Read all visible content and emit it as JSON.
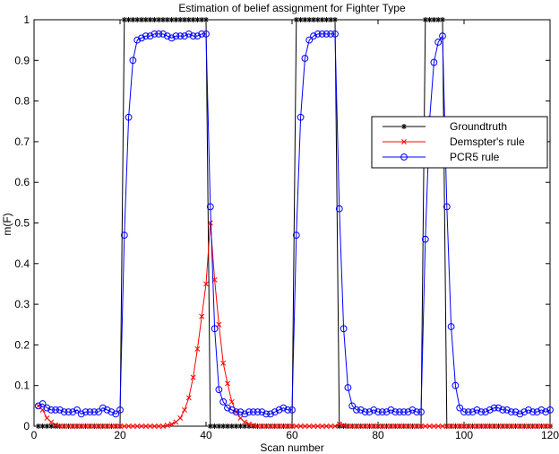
{
  "chart_data": {
    "type": "line",
    "title": "Estimation of belief assignment for Fighter Type",
    "xlabel": "Scan number",
    "ylabel": "m(F)",
    "xlim": [
      0,
      120
    ],
    "ylim": [
      0,
      1
    ],
    "xticks": [
      "0",
      "20",
      "40",
      "60",
      "80",
      "100",
      "120"
    ],
    "yticks": [
      "0",
      "0.1",
      "0.2",
      "0.3",
      "0.4",
      "0.5",
      "0.6",
      "0.7",
      "0.8",
      "0.9",
      "1"
    ],
    "grid": false,
    "legend_position": "right",
    "x": [
      1,
      2,
      3,
      4,
      5,
      6,
      7,
      8,
      9,
      10,
      11,
      12,
      13,
      14,
      15,
      16,
      17,
      18,
      19,
      20,
      21,
      22,
      23,
      24,
      25,
      26,
      27,
      28,
      29,
      30,
      31,
      32,
      33,
      34,
      35,
      36,
      37,
      38,
      39,
      40,
      41,
      42,
      43,
      44,
      45,
      46,
      47,
      48,
      49,
      50,
      51,
      52,
      53,
      54,
      55,
      56,
      57,
      58,
      59,
      60,
      61,
      62,
      63,
      64,
      65,
      66,
      67,
      68,
      69,
      70,
      71,
      72,
      73,
      74,
      75,
      76,
      77,
      78,
      79,
      80,
      81,
      82,
      83,
      84,
      85,
      86,
      87,
      88,
      89,
      90,
      91,
      92,
      93,
      94,
      95,
      96,
      97,
      98,
      99,
      100,
      101,
      102,
      103,
      104,
      105,
      106,
      107,
      108,
      109,
      110,
      111,
      112,
      113,
      114,
      115,
      116,
      117,
      118,
      119,
      120
    ],
    "series": [
      {
        "name": "Groundtruth",
        "color": "#000000",
        "marker": "star",
        "values": [
          0,
          0,
          0,
          0,
          0,
          0,
          0,
          0,
          0,
          0,
          0,
          0,
          0,
          0,
          0,
          0,
          0,
          0,
          0,
          0,
          1,
          1,
          1,
          1,
          1,
          1,
          1,
          1,
          1,
          1,
          1,
          1,
          1,
          1,
          1,
          1,
          1,
          1,
          1,
          1,
          0,
          0,
          0,
          0,
          0,
          0,
          0,
          0,
          0,
          0,
          0,
          0,
          0,
          0,
          0,
          0,
          0,
          0,
          0,
          0,
          1,
          1,
          1,
          1,
          1,
          1,
          1,
          1,
          1,
          1,
          0,
          0,
          0,
          0,
          0,
          0,
          0,
          0,
          0,
          0,
          0,
          0,
          0,
          0,
          0,
          0,
          0,
          0,
          0,
          0,
          1,
          1,
          1,
          1,
          1,
          0,
          0,
          0,
          0,
          0,
          0,
          0,
          0,
          0,
          0,
          0,
          0,
          0,
          0,
          0,
          0,
          0,
          0,
          0,
          0,
          0,
          0,
          0,
          0,
          0
        ]
      },
      {
        "name": "Demspter's rule",
        "color": "#ff0000",
        "marker": "x",
        "values": [
          0.05,
          0.04,
          0.02,
          0.01,
          0.003,
          0,
          0,
          0,
          0,
          0,
          0,
          0,
          0,
          0,
          0,
          0,
          0,
          0,
          0,
          0,
          0,
          0,
          0,
          0,
          0,
          0,
          0,
          0,
          0,
          0,
          0.002,
          0.005,
          0.01,
          0.02,
          0.04,
          0.07,
          0.12,
          0.19,
          0.27,
          0.35,
          0.5,
          0.36,
          0.25,
          0.155,
          0.105,
          0.06,
          0.035,
          0.02,
          0.01,
          0.005,
          0.002,
          0,
          0,
          0,
          0,
          0,
          0,
          0,
          0,
          0,
          0,
          0,
          0,
          0,
          0,
          0,
          0,
          0,
          0,
          0,
          0.005,
          0.002,
          0,
          0,
          0,
          0,
          0,
          0,
          0,
          0,
          0,
          0,
          0,
          0,
          0,
          0,
          0,
          0,
          0,
          0,
          0,
          0,
          0,
          0,
          0,
          0,
          0,
          0,
          0,
          0,
          0,
          0,
          0,
          0,
          0,
          0,
          0,
          0,
          0,
          0,
          0,
          0,
          0,
          0,
          0,
          0,
          0,
          0,
          0,
          0
        ]
      },
      {
        "name": "PCR5 rule",
        "color": "#0000ff",
        "marker": "circle",
        "values": [
          0.05,
          0.055,
          0.045,
          0.04,
          0.04,
          0.04,
          0.035,
          0.035,
          0.035,
          0.04,
          0.03,
          0.035,
          0.035,
          0.035,
          0.035,
          0.045,
          0.04,
          0.035,
          0.03,
          0.04,
          0.47,
          0.76,
          0.9,
          0.95,
          0.955,
          0.96,
          0.96,
          0.965,
          0.965,
          0.965,
          0.96,
          0.955,
          0.96,
          0.96,
          0.96,
          0.965,
          0.96,
          0.96,
          0.965,
          0.965,
          0.54,
          0.24,
          0.09,
          0.06,
          0.045,
          0.04,
          0.035,
          0.035,
          0.03,
          0.035,
          0.035,
          0.035,
          0.035,
          0.03,
          0.03,
          0.035,
          0.04,
          0.045,
          0.04,
          0.04,
          0.47,
          0.76,
          0.905,
          0.95,
          0.96,
          0.965,
          0.965,
          0.965,
          0.965,
          0.965,
          0.535,
          0.24,
          0.095,
          0.05,
          0.04,
          0.04,
          0.035,
          0.035,
          0.04,
          0.035,
          0.035,
          0.035,
          0.04,
          0.035,
          0.035,
          0.035,
          0.035,
          0.04,
          0.035,
          0.035,
          0.46,
          0.755,
          0.895,
          0.945,
          0.96,
          0.54,
          0.245,
          0.1,
          0.045,
          0.035,
          0.035,
          0.035,
          0.04,
          0.035,
          0.035,
          0.04,
          0.045,
          0.045,
          0.04,
          0.04,
          0.035,
          0.035,
          0.03,
          0.035,
          0.04,
          0.035,
          0.035,
          0.04,
          0.035,
          0.04
        ]
      }
    ]
  }
}
